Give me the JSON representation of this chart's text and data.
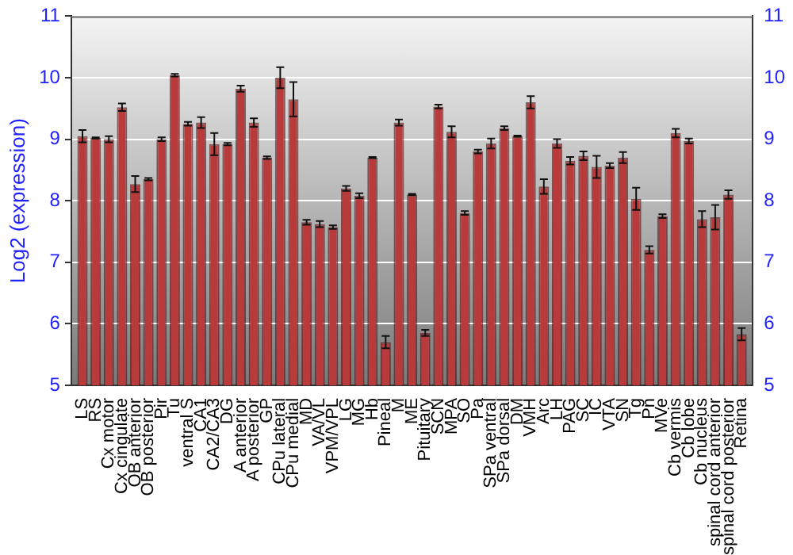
{
  "chart_data": {
    "type": "bar",
    "ylabel": "Log2 (expression)",
    "categories": [
      "LS",
      "RS",
      "Cx motor",
      "Cx cingulate",
      "OB anterior",
      "OB posterior",
      "Pir",
      "Tu",
      "ventral S",
      "CA1",
      "CA2/CA3",
      "DG",
      "A anterior",
      "A posterior",
      "GP",
      "CPu lateral",
      "CPu medial",
      "MD",
      "VA/VL",
      "VPM/VPL",
      "LG",
      "MG",
      "Hb",
      "Pineal",
      "M",
      "ME",
      "Pituitary",
      "SCN",
      "MPA",
      "SO",
      "Pa",
      "SPa ventral",
      "SPa dorsal",
      "DM",
      "VMH",
      "Arc",
      "LH",
      "PAG",
      "SC",
      "IC",
      "VTA",
      "SN",
      "Tg",
      "Pn",
      "MVe",
      "Cb vermis",
      "Cb lobe",
      "Cb nucleus",
      "spinal cord anterior",
      "spinal cord posterior",
      "Retina"
    ],
    "series": [
      {
        "color": "#b83a3a",
        "values": [
          9.05,
          9.02,
          9.0,
          9.52,
          8.27,
          8.35,
          9.0,
          10.04,
          9.25,
          9.27,
          8.92,
          8.92,
          9.82,
          9.27,
          8.7,
          10.0,
          9.65,
          7.65,
          7.62,
          7.57,
          8.2,
          8.08,
          8.7,
          5.7,
          9.27,
          8.1,
          5.85,
          9.53,
          9.12,
          7.8,
          8.8,
          8.93,
          9.18,
          9.05,
          9.6,
          8.23,
          8.93,
          8.65,
          8.73,
          8.55,
          8.57,
          8.7,
          8.03,
          7.2,
          7.75,
          9.1,
          8.97,
          7.7,
          7.73,
          8.1,
          5.83
        ],
        "errors": [
          0.1,
          0.01,
          0.05,
          0.06,
          0.13,
          0.02,
          0.03,
          0.02,
          0.03,
          0.09,
          0.18,
          0.02,
          0.05,
          0.07,
          0.02,
          0.17,
          0.28,
          0.04,
          0.05,
          0.03,
          0.04,
          0.04,
          0.01,
          0.1,
          0.05,
          0.01,
          0.05,
          0.03,
          0.09,
          0.03,
          0.03,
          0.08,
          0.03,
          0.01,
          0.1,
          0.12,
          0.07,
          0.06,
          0.07,
          0.18,
          0.04,
          0.09,
          0.18,
          0.06,
          0.03,
          0.07,
          0.04,
          0.13,
          0.2,
          0.07,
          0.1
        ]
      }
    ],
    "ylim": [
      5,
      11
    ],
    "yticks": [
      5,
      6,
      7,
      8,
      9,
      10,
      11
    ],
    "y2lim": [
      5,
      11
    ],
    "y2ticks": [
      5,
      6,
      7,
      8,
      9,
      10,
      11
    ],
    "grid": "y",
    "legend": false
  }
}
